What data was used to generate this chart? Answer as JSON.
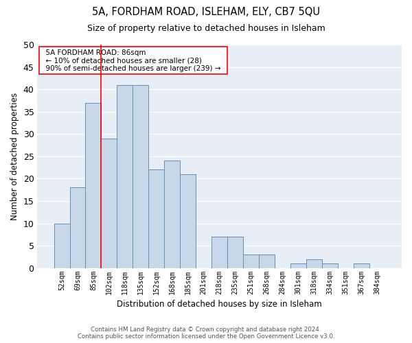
{
  "title1": "5A, FORDHAM ROAD, ISLEHAM, ELY, CB7 5QU",
  "title2": "Size of property relative to detached houses in Isleham",
  "xlabel": "Distribution of detached houses by size in Isleham",
  "ylabel": "Number of detached properties",
  "categories": [
    "52sqm",
    "69sqm",
    "85sqm",
    "102sqm",
    "118sqm",
    "135sqm",
    "152sqm",
    "168sqm",
    "185sqm",
    "201sqm",
    "218sqm",
    "235sqm",
    "251sqm",
    "268sqm",
    "284sqm",
    "301sqm",
    "318sqm",
    "334sqm",
    "351sqm",
    "367sqm",
    "384sqm"
  ],
  "values": [
    10,
    18,
    37,
    29,
    41,
    41,
    22,
    24,
    21,
    0,
    7,
    7,
    3,
    3,
    0,
    1,
    2,
    1,
    0,
    1,
    0
  ],
  "bar_color": "#c8d8e8",
  "bar_edge_color": "#6090b8",
  "red_line_x": 2.5,
  "annotation_label": "5A FORDHAM ROAD: 86sqm",
  "annotation_line1": "← 10% of detached houses are smaller (28)",
  "annotation_line2": "90% of semi-detached houses are larger (239) →",
  "ylim": [
    0,
    50
  ],
  "yticks": [
    0,
    5,
    10,
    15,
    20,
    25,
    30,
    35,
    40,
    45,
    50
  ],
  "footer1": "Contains HM Land Registry data © Crown copyright and database right 2024.",
  "footer2": "Contains public sector information licensed under the Open Government Licence v3.0.",
  "bg_color": "#e8eef5"
}
